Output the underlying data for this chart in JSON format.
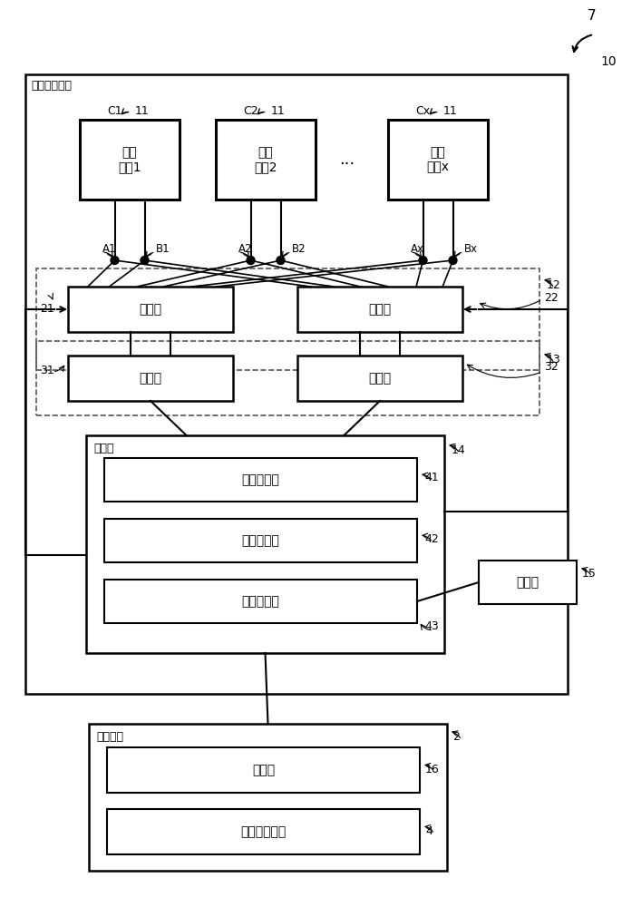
{
  "bg_color": "#ffffff",
  "outer_box_label": "异物检测装置",
  "coil1_label": "检测\n线圈1",
  "coil2_label": "检测\n线圈2",
  "coilx_label": "检测\n线圈x",
  "dots_label": "...",
  "c1_label": "C1",
  "c2_label": "C2",
  "cx_label": "Cx",
  "n11": "11",
  "a1_label": "A1",
  "b1_label": "B1",
  "a2_label": "A2",
  "b2_label": "B2",
  "ax_label": "Ax",
  "bx_label": "Bx",
  "switch1_label": "切换部",
  "switch2_label": "切换部",
  "meas1_label": "测定部",
  "meas2_label": "测定部",
  "ctrl_outer_label": "控制部",
  "ctrl_inner1_label": "切换控制部",
  "ctrl_inner2_label": "故障判断部",
  "ctrl_inner3_label": "异物检测部",
  "storage_label": "存储部",
  "power_outer_label": "输电装置",
  "power_ctrl_label": "控制部",
  "power_coil_label": "输电线圈装置",
  "num_2": "2",
  "num_4": "4",
  "num_7": "7",
  "num_10": "10",
  "num_12": "12",
  "num_13": "13",
  "num_14": "14",
  "num_15": "15",
  "num_16": "16",
  "num_21": "21",
  "num_22": "22",
  "num_31": "31",
  "num_32": "32",
  "num_41": "41",
  "num_42": "42",
  "num_43": "43"
}
